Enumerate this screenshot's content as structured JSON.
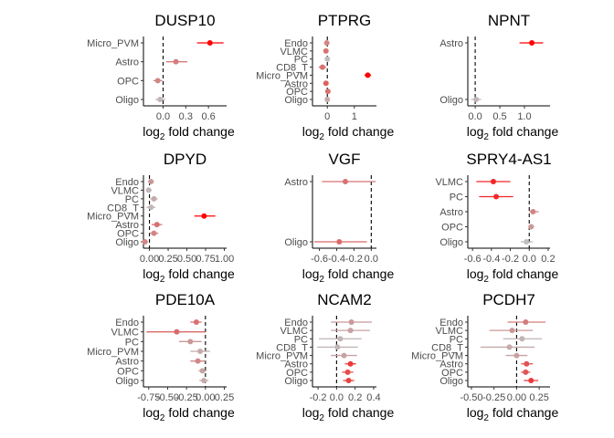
{
  "axis_label": {
    "prefix": "log",
    "subscript": "2",
    "suffix": " fold change"
  },
  "colors": {
    "low": "#bebebe",
    "high": "#ff0000",
    "refline": "#000000",
    "axis": "#000000"
  },
  "chart_data": [
    {
      "type": "scatter",
      "subtype": "forest",
      "title": "DUSP10",
      "categories": [
        "Micro_PVM",
        "Astro",
        "OPC",
        "Oligo"
      ],
      "estimate": [
        0.62,
        0.17,
        -0.07,
        -0.04
      ],
      "ci_low": [
        0.45,
        0.04,
        -0.13,
        -0.1
      ],
      "ci_high": [
        0.8,
        0.32,
        -0.01,
        0.03
      ],
      "significance": [
        1.0,
        0.35,
        0.3,
        0.05
      ],
      "xlim": [
        -0.26,
        0.84
      ],
      "xticks": [
        0.0,
        0.3,
        0.6
      ],
      "xtick_labels": [
        "0.0",
        "0.3",
        "0.6"
      ],
      "refline": 0
    },
    {
      "type": "scatter",
      "subtype": "forest",
      "title": "PTPRG",
      "categories": [
        "Endo",
        "VLMC",
        "PC",
        "CD8_T",
        "Micro_PVM",
        "Astro",
        "OPC",
        "Oligo"
      ],
      "estimate": [
        -0.02,
        -0.05,
        0.0,
        -0.18,
        1.5,
        -0.05,
        0.02,
        0.0
      ],
      "ci_low": [
        -0.1,
        -0.12,
        -0.04,
        -0.32,
        1.38,
        -0.1,
        -0.03,
        -0.05
      ],
      "ci_high": [
        0.05,
        0.02,
        0.04,
        -0.04,
        1.62,
        0.0,
        0.07,
        0.05
      ],
      "significance": [
        0.3,
        0.4,
        0.0,
        0.4,
        1.0,
        0.5,
        0.4,
        0.1
      ],
      "xlim": [
        -0.55,
        1.82
      ],
      "xticks": [
        0,
        1
      ],
      "xtick_labels": [
        "0",
        "1"
      ],
      "refline": 0
    },
    {
      "type": "scatter",
      "subtype": "forest",
      "title": "NPNT",
      "categories": [
        "Astro",
        "Oligo"
      ],
      "estimate": [
        1.15,
        0.02
      ],
      "ci_low": [
        0.9,
        -0.08
      ],
      "ci_high": [
        1.38,
        0.12
      ],
      "significance": [
        1.0,
        0.05
      ],
      "xlim": [
        -0.15,
        1.52
      ],
      "xticks": [
        0.0,
        0.5,
        1.0
      ],
      "xtick_labels": [
        "0.0",
        "0.5",
        "1.0"
      ],
      "refline": 0
    },
    {
      "type": "scatter",
      "subtype": "forest",
      "title": "DPYD",
      "categories": [
        "Endo",
        "VLMC",
        "PC",
        "CD8_T",
        "Micro_PVM",
        "Astro",
        "OPC",
        "Oligo"
      ],
      "estimate": [
        0.02,
        -0.01,
        0.06,
        0.02,
        0.73,
        0.1,
        0.06,
        -0.06
      ],
      "ci_low": [
        -0.02,
        -0.05,
        0.01,
        -0.04,
        0.6,
        0.03,
        0.0,
        -0.1
      ],
      "ci_high": [
        0.06,
        0.03,
        0.11,
        0.08,
        0.88,
        0.17,
        0.12,
        -0.02
      ],
      "significance": [
        0.2,
        0.05,
        0.1,
        0.05,
        1.0,
        0.4,
        0.3,
        0.3
      ],
      "xlim": [
        -0.08,
        1.03
      ],
      "xticks": [
        0.0,
        0.25,
        0.5,
        0.75,
        1.0
      ],
      "xtick_labels": [
        "0.00",
        "0.25",
        "0.50",
        "0.75",
        "1.00"
      ],
      "refline": 0
    },
    {
      "type": "scatter",
      "subtype": "forest",
      "title": "VGF",
      "categories": [
        "Astro",
        "Oligo"
      ],
      "estimate": [
        -0.3,
        -0.37
      ],
      "ci_low": [
        -0.57,
        -0.66
      ],
      "ci_high": [
        0.05,
        -0.05
      ],
      "significance": [
        0.4,
        0.45
      ],
      "xlim": [
        -0.68,
        0.06
      ],
      "xticks": [
        -0.6,
        -0.4,
        -0.2,
        0.0
      ],
      "xtick_labels": [
        "-0.6",
        "-0.4",
        "-0.2",
        "0.0"
      ],
      "refline": 0
    },
    {
      "type": "scatter",
      "subtype": "forest",
      "title": "SPRY4-AS1",
      "categories": [
        "VLMC",
        "PC",
        "Astro",
        "OPC",
        "Oligo"
      ],
      "estimate": [
        -0.38,
        -0.35,
        0.04,
        0.02,
        -0.03
      ],
      "ci_low": [
        -0.56,
        -0.53,
        0.0,
        -0.01,
        -0.09
      ],
      "ci_high": [
        -0.2,
        -0.17,
        0.1,
        0.05,
        0.04
      ],
      "significance": [
        0.8,
        0.8,
        0.3,
        0.2,
        0.0
      ],
      "xlim": [
        -0.65,
        0.22
      ],
      "xticks": [
        -0.6,
        -0.4,
        -0.2,
        0.0,
        0.2
      ],
      "xtick_labels": [
        "-0.6",
        "-0.4",
        "-0.2",
        "0.0",
        "0.2"
      ],
      "refline": 0
    },
    {
      "type": "scatter",
      "subtype": "forest",
      "title": "PDE10A",
      "categories": [
        "Endo",
        "VLMC",
        "PC",
        "Micro_PVM",
        "Astro",
        "OPC",
        "Oligo"
      ],
      "estimate": [
        -0.12,
        -0.38,
        -0.2,
        -0.07,
        -0.1,
        -0.04,
        -0.02
      ],
      "ci_low": [
        -0.2,
        -0.78,
        -0.35,
        -0.2,
        -0.2,
        -0.09,
        -0.08
      ],
      "ci_high": [
        -0.05,
        0.0,
        -0.05,
        0.06,
        0.0,
        0.01,
        0.04
      ],
      "significance": [
        0.4,
        0.45,
        0.2,
        0.1,
        0.3,
        0.15,
        0.1
      ],
      "xlim": [
        -0.82,
        0.28
      ],
      "xticks": [
        -0.75,
        -0.5,
        -0.25,
        0.0,
        0.25
      ],
      "xtick_labels": [
        "-0.75",
        "-0.50",
        "-0.25",
        "0.00",
        "0.25"
      ],
      "refline": 0
    },
    {
      "type": "scatter",
      "subtype": "forest",
      "title": "NCAM2",
      "categories": [
        "Endo",
        "VLMC",
        "PC",
        "CD8_T",
        "Micro_PVM",
        "Astro",
        "OPC",
        "Oligo"
      ],
      "estimate": [
        0.16,
        0.15,
        0.04,
        0.01,
        0.08,
        0.15,
        0.12,
        0.13
      ],
      "ci_low": [
        -0.06,
        -0.06,
        -0.19,
        -0.21,
        -0.06,
        0.09,
        0.06,
        0.07
      ],
      "ci_high": [
        0.38,
        0.36,
        0.27,
        0.23,
        0.22,
        0.21,
        0.18,
        0.19
      ],
      "significance": [
        0.2,
        0.15,
        0.05,
        0.05,
        0.15,
        0.7,
        0.6,
        0.65
      ],
      "xlim": [
        -0.26,
        0.43
      ],
      "xticks": [
        -0.2,
        0.0,
        0.2,
        0.4
      ],
      "xtick_labels": [
        "-0.2",
        "0.0",
        "0.2",
        "0.4"
      ],
      "refline": 0
    },
    {
      "type": "scatter",
      "subtype": "forest",
      "title": "PCDH7",
      "categories": [
        "Endo",
        "VLMC",
        "PC",
        "CD8_T",
        "Micro_PVM",
        "Astro",
        "OPC",
        "Oligo"
      ],
      "estimate": [
        0.1,
        -0.05,
        0.06,
        -0.08,
        0.0,
        0.11,
        0.1,
        0.16
      ],
      "ci_low": [
        -0.1,
        -0.3,
        -0.15,
        -0.4,
        -0.12,
        0.05,
        0.05,
        0.08
      ],
      "ci_high": [
        0.32,
        0.18,
        0.28,
        0.2,
        0.12,
        0.18,
        0.15,
        0.24
      ],
      "significance": [
        0.35,
        0.2,
        0.05,
        0.1,
        0.15,
        0.55,
        0.55,
        0.7
      ],
      "xlim": [
        -0.54,
        0.37
      ],
      "xticks": [
        -0.5,
        -0.25,
        0.0,
        0.25
      ],
      "xtick_labels": [
        "-0.50",
        "-0.25",
        "0.00",
        "0.25"
      ],
      "refline": 0
    }
  ]
}
